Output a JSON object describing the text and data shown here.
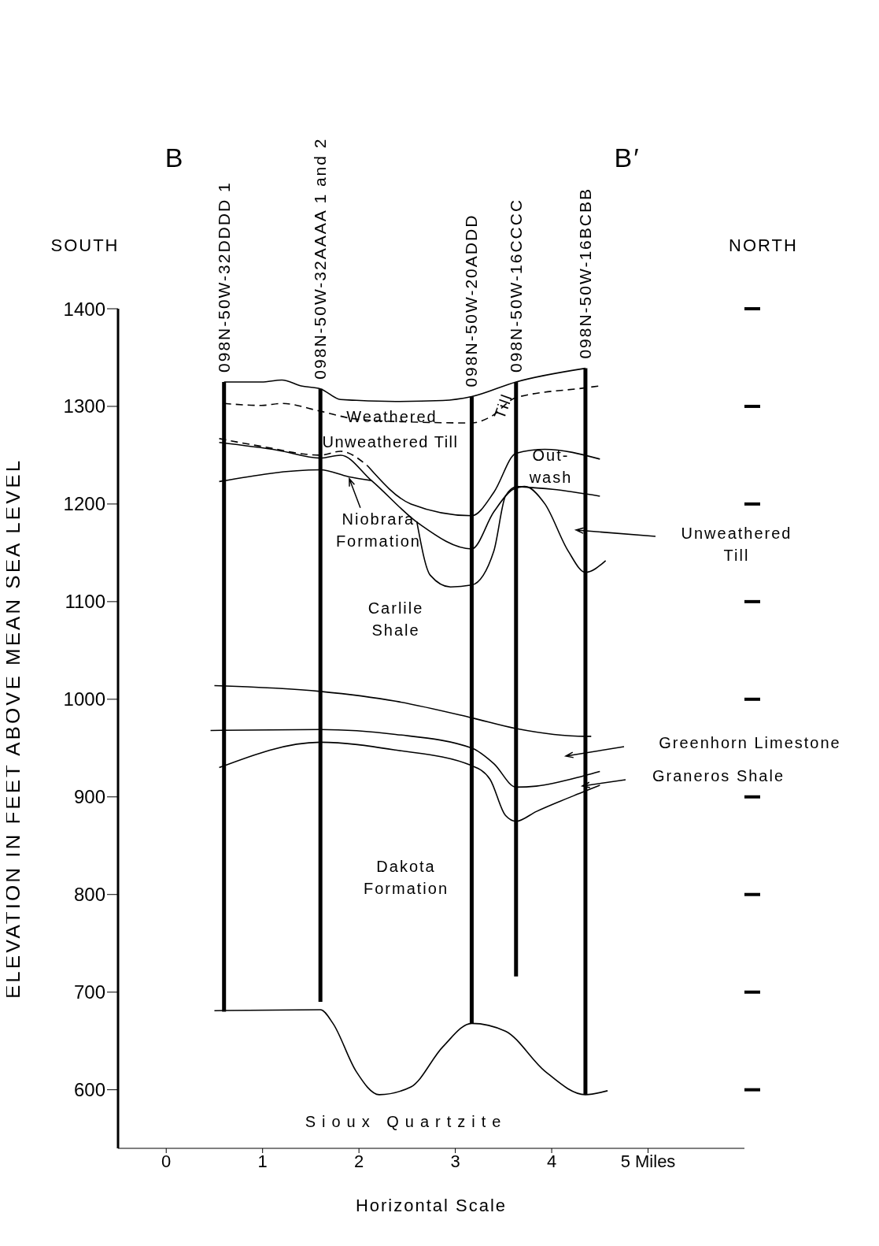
{
  "chart_data": {
    "type": "line",
    "xlabel": "Horizontal Scale",
    "ylabel": "ELEVATION IN FEET ABOVE MEAN SEA LEVEL",
    "xlim": [
      -0.5,
      6.0
    ],
    "xticks": [
      0,
      1,
      2,
      3,
      4,
      {
        "value": 5,
        "label": "5 Miles"
      }
    ],
    "ylim": [
      540,
      1400
    ],
    "yticks": [
      600,
      700,
      800,
      900,
      1000,
      1100,
      1200,
      1300,
      1400
    ],
    "series": [
      {
        "color": "#000000",
        "x": [
          0.6,
          0.99,
          1.2,
          1.4,
          1.6,
          1.81,
          2.38,
          2.87,
          3.17,
          3.63,
          4.35
        ],
        "values": [
          1325,
          1325,
          1327,
          1321,
          1318,
          1307,
          1305,
          1306,
          1310,
          1325,
          1339
        ]
      },
      {
        "color": "#000000",
        "line_style": "dashed",
        "x": [
          0.6,
          0.99,
          1.2,
          1.6,
          1.97,
          2.54,
          3.17,
          3.36,
          3.63,
          4.35,
          4.5
        ],
        "values": [
          1303,
          1301,
          1303,
          1295,
          1287,
          1284,
          1283,
          1289,
          1309,
          1319,
          1321
        ]
      },
      {
        "color": "#000000",
        "line_style": "dashed",
        "x": [
          0.55,
          0.99,
          1.6,
          1.81,
          2.09
        ],
        "values": [
          1267,
          1259,
          1250,
          1254,
          1239
        ]
      },
      {
        "color": "#000000",
        "x": [
          2.09,
          2.54,
          3.17,
          3.4,
          3.63,
          3.93,
          4.5
        ],
        "values": [
          1239,
          1200,
          1188,
          1212,
          1252,
          1256,
          1246
        ]
      },
      {
        "color": "#000000",
        "x": [
          0.55,
          1.16,
          1.6,
          1.81,
          2.13,
          2.62,
          3.17,
          3.4,
          3.6,
          3.72,
          3.93,
          4.17,
          4.35,
          4.56
        ],
        "values": [
          1263,
          1255,
          1247,
          1250,
          1224,
          1180,
          1154,
          1192,
          1215,
          1218,
          1200,
          1152,
          1130,
          1142
        ]
      },
      {
        "color": "#000000",
        "x": [
          0.55,
          1.6,
          1.89,
          2.13
        ],
        "values": [
          1223,
          1235,
          1228,
          1224
        ]
      },
      {
        "color": "#000000",
        "x": [
          2.6,
          2.74,
          2.95,
          3.17,
          3.4,
          3.52,
          3.63
        ],
        "values": [
          1182,
          1127,
          1115,
          1117,
          1152,
          1208,
          1218
        ]
      },
      {
        "color": "#000000",
        "x": [
          3.63,
          4.01,
          4.5
        ],
        "values": [
          1218,
          1215,
          1208
        ]
      },
      {
        "color": "#000000",
        "x": [
          0.5,
          1.6,
          2.38,
          3.17,
          3.63,
          4.35,
          4.41
        ],
        "values": [
          1014,
          1008,
          998,
          981,
          970,
          962,
          962
        ]
      },
      {
        "color": "#000000",
        "x": [
          0.46,
          1.6,
          2.38,
          3.17,
          3.4,
          3.63,
          3.84,
          4.35,
          4.5
        ],
        "values": [
          968,
          969,
          964,
          950,
          934,
          910,
          911,
          922,
          926
        ]
      },
      {
        "color": "#000000",
        "x": [
          0.55,
          1.6,
          2.38,
          3.17,
          3.36,
          3.52,
          3.63,
          3.84,
          4.35,
          4.5
        ],
        "values": [
          930,
          956,
          948,
          932,
          918,
          881,
          875,
          885,
          906,
          912
        ]
      },
      {
        "color": "#000000",
        "x": [
          0.5,
          1.6,
          1.73,
          1.97,
          2.21,
          2.54,
          2.87,
          3.17,
          3.52,
          3.93,
          4.35,
          4.58
        ],
        "values": [
          681,
          682,
          668,
          619,
          595,
          603,
          644,
          668,
          660,
          619,
          595,
          599
        ]
      },
      {
        "color": "#000000",
        "x": [
          0.6,
          0.6
        ],
        "values": [
          1325,
          680
        ]
      },
      {
        "color": "#000000",
        "x": [
          1.6,
          1.6
        ],
        "values": [
          1318,
          690
        ]
      },
      {
        "color": "#000000",
        "x": [
          3.17,
          3.17
        ],
        "values": [
          1310,
          668
        ]
      },
      {
        "color": "#000000",
        "x": [
          3.63,
          3.63
        ],
        "values": [
          1325,
          716
        ]
      },
      {
        "color": "#000000",
        "x": [
          4.35,
          4.35
        ],
        "values": [
          1339,
          595
        ]
      }
    ],
    "annotations": [
      "Weathered",
      "Till",
      "Unweathered Till",
      "Out-wash",
      {
        "text": "Niobrara Formation",
        "x": 1.9,
        "y": 1226
      },
      "Unweathered Till",
      "Carlile Shale",
      "Greenhorn Limestone",
      "Graneros Shale",
      "Dakota Formation",
      "Sioux Quartzite",
      {
        "text": "098N-50W-32DDDD 1",
        "x": 0.6,
        "y": 1325
      },
      {
        "text": "098N-50W-32AAAA 1 and 2",
        "x": 1.6,
        "y": 1318
      },
      {
        "text": "098N-50W-20ADDD",
        "x": 3.17,
        "y": 1310
      },
      {
        "text": "098N-50W-16CCCC",
        "x": 3.63,
        "y": 1325
      },
      {
        "text": "098N-50W-16BCBB",
        "x": 4.35,
        "y": 1339
      },
      "B",
      "B′",
      "SOUTH",
      "NORTH"
    ]
  }
}
